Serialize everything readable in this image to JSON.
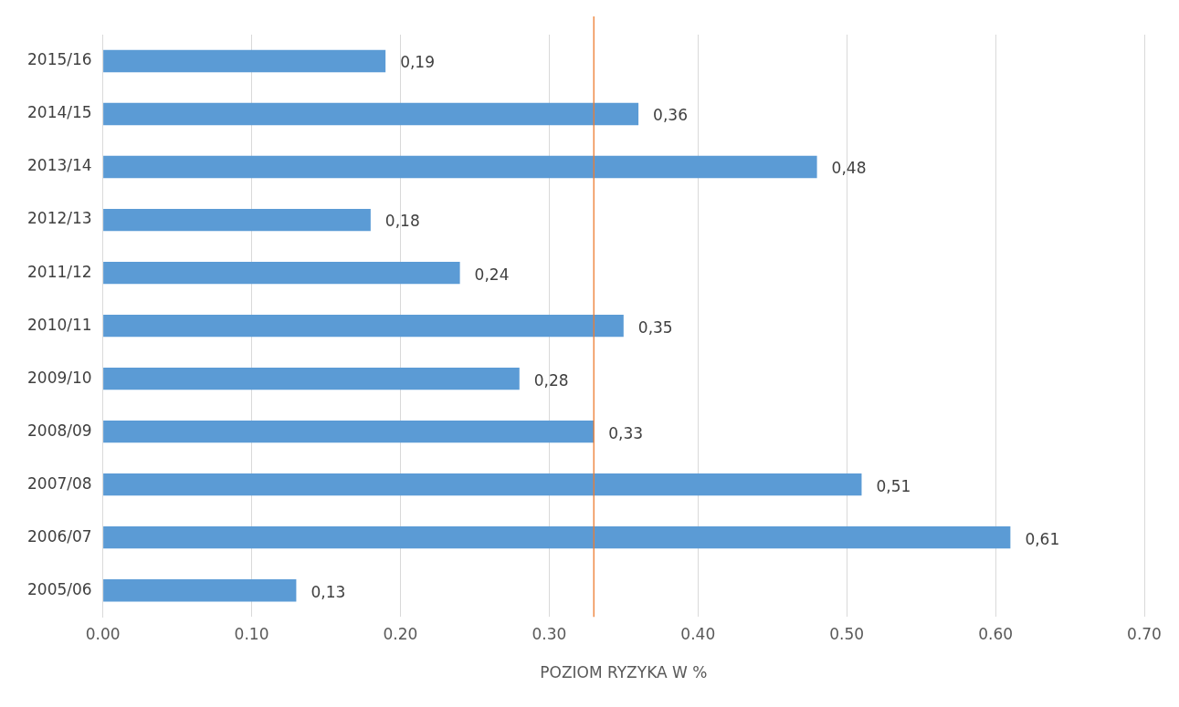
{
  "chart_data": {
    "type": "bar",
    "orientation": "horizontal",
    "xlabel": "POZIOM RYZYKA W %",
    "categories": [
      "2015/16",
      "2014/15",
      "2013/14",
      "2012/13",
      "2011/12",
      "2010/11",
      "2009/10",
      "2008/09",
      "2007/08",
      "2006/07",
      "2005/06"
    ],
    "values": [
      0.19,
      0.36,
      0.48,
      0.18,
      0.24,
      0.35,
      0.28,
      0.33,
      0.51,
      0.61,
      0.13
    ],
    "value_labels": [
      "0,19",
      "0,36",
      "0,48",
      "0,18",
      "0,24",
      "0,35",
      "0,28",
      "0,33",
      "0,51",
      "0,61",
      "0,13"
    ],
    "color": "#5b9bd5",
    "xlim": [
      0,
      0.7
    ],
    "xticks": [
      {
        "value": 0,
        "label": "0.00"
      },
      {
        "value": 0.1,
        "label": "0.10"
      },
      {
        "value": 0.2,
        "label": "0.20"
      },
      {
        "value": 0.3,
        "label": "0.30"
      },
      {
        "value": 0.4,
        "label": "0.40"
      },
      {
        "value": 0.5,
        "label": "0.50"
      },
      {
        "value": 0.6,
        "label": "0.60"
      },
      {
        "value": 0.7,
        "label": "0.70"
      }
    ],
    "grid": "x",
    "ref_lines": [
      {
        "axis": "x",
        "value": 0.33,
        "color": "#ed7d31"
      }
    ]
  }
}
